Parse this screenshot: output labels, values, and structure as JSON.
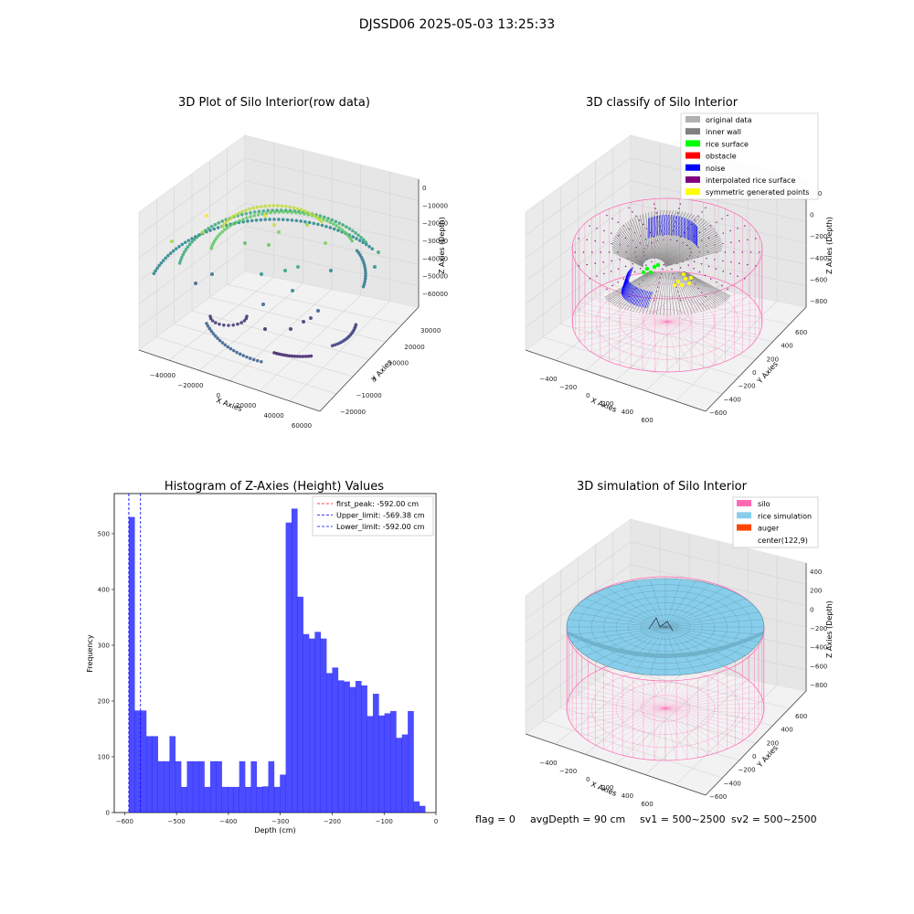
{
  "figure": {
    "suptitle": "DJSSD06 2025-05-03 13:25:33",
    "status": {
      "flag": "flag = 0",
      "avg_depth": "avgDepth = 90 cm",
      "sv1": "sv1 = 500~2500",
      "sv2": "sv2 = 500~2500"
    }
  },
  "colors": {
    "silo": "#ff69b4",
    "rice_simulation": "#87ceeb",
    "auger": "#ff4500",
    "histogram": "#0000ff",
    "original_data": "#b0b0b0",
    "inner_wall": "#808080",
    "rice_surface": "#00ff00",
    "obstacle": "#ff0000",
    "noise": "#0000ff",
    "interpolated_rice_surface": "#800080",
    "symmetric_generated_points": "#ffff00"
  },
  "chart_data": [
    {
      "type": "scatter",
      "title": "3D Plot of Silo Interior(row data)",
      "xlabel": "X Axies",
      "ylabel": "Y Axies",
      "zlabel": "Z Axies (Depth)",
      "x_ticks": [
        "−40000",
        "−20000",
        "0",
        "20000",
        "40000",
        "60000"
      ],
      "y_ticks": [
        "−20000",
        "−10000",
        "0",
        "10000",
        "20000",
        "30000"
      ],
      "z_ticks": [
        "0",
        "−10000",
        "−20000",
        "−30000",
        "−40000",
        "−50000",
        "−60000"
      ]
    },
    {
      "type": "scatter",
      "title": "3D classify of Silo Interior",
      "xlabel": "X Axies",
      "ylabel": "Y Axies",
      "zlabel": "Z Axies (Depth)",
      "x_ticks": [
        "−400",
        "−200",
        "0",
        "200",
        "400",
        "600"
      ],
      "y_ticks": [
        "−600",
        "−400",
        "−200",
        "0",
        "200",
        "400",
        "600"
      ],
      "z_ticks": [
        "200",
        "0",
        "−200",
        "−400",
        "−600",
        "−800"
      ],
      "legend": [
        "original data",
        "inner wall",
        "rice surface",
        "obstacle",
        "noise",
        "interpolated rice surface",
        "symmetric generated points"
      ]
    },
    {
      "type": "bar",
      "title": "Histogram of Z-Axies (Height) Values",
      "xlabel": "Depth (cm)",
      "ylabel": "Frequency",
      "xlim": [
        -620,
        0
      ],
      "ylim": [
        0,
        572
      ],
      "x_ticks": [
        "−600",
        "−500",
        "−400",
        "−300",
        "−200",
        "−100",
        "0"
      ],
      "y_ticks": [
        "0",
        "100",
        "200",
        "300",
        "400",
        "500"
      ],
      "bins_start": -592,
      "bin_width": 11.2,
      "values": [
        530,
        183,
        183,
        137,
        137,
        92,
        92,
        137,
        92,
        46,
        92,
        92,
        92,
        46,
        92,
        92,
        46,
        46,
        46,
        92,
        46,
        92,
        46,
        47,
        92,
        46,
        68,
        520,
        545,
        387,
        320,
        312,
        324,
        312,
        250,
        260,
        237,
        235,
        225,
        236,
        228,
        173,
        213,
        174,
        178,
        182,
        134,
        140,
        182,
        20,
        12
      ],
      "lines": [
        {
          "label": "first_peak: -592.00 cm",
          "x": -592,
          "color": "#ff0000"
        },
        {
          "label": "Upper_limit: -569.38 cm",
          "x": -569.38,
          "color": "#0000ff"
        },
        {
          "label": "Lower_limit: -592.00 cm",
          "x": -592,
          "color": "#0000ff"
        }
      ]
    },
    {
      "type": "surface",
      "title": "3D simulation of Silo Interior",
      "xlabel": "X Axies",
      "ylabel": "Y Axies",
      "zlabel": "Z Axies (Depth)",
      "x_ticks": [
        "−400",
        "−200",
        "0",
        "200",
        "400",
        "600"
      ],
      "y_ticks": [
        "−600",
        "−400",
        "−200",
        "0",
        "200",
        "400",
        "600"
      ],
      "z_ticks": [
        "400",
        "200",
        "0",
        "−200",
        "−400",
        "−600",
        "−800"
      ],
      "legend": [
        "silo",
        "rice simulation",
        "auger",
        "center(122,9)"
      ]
    }
  ]
}
